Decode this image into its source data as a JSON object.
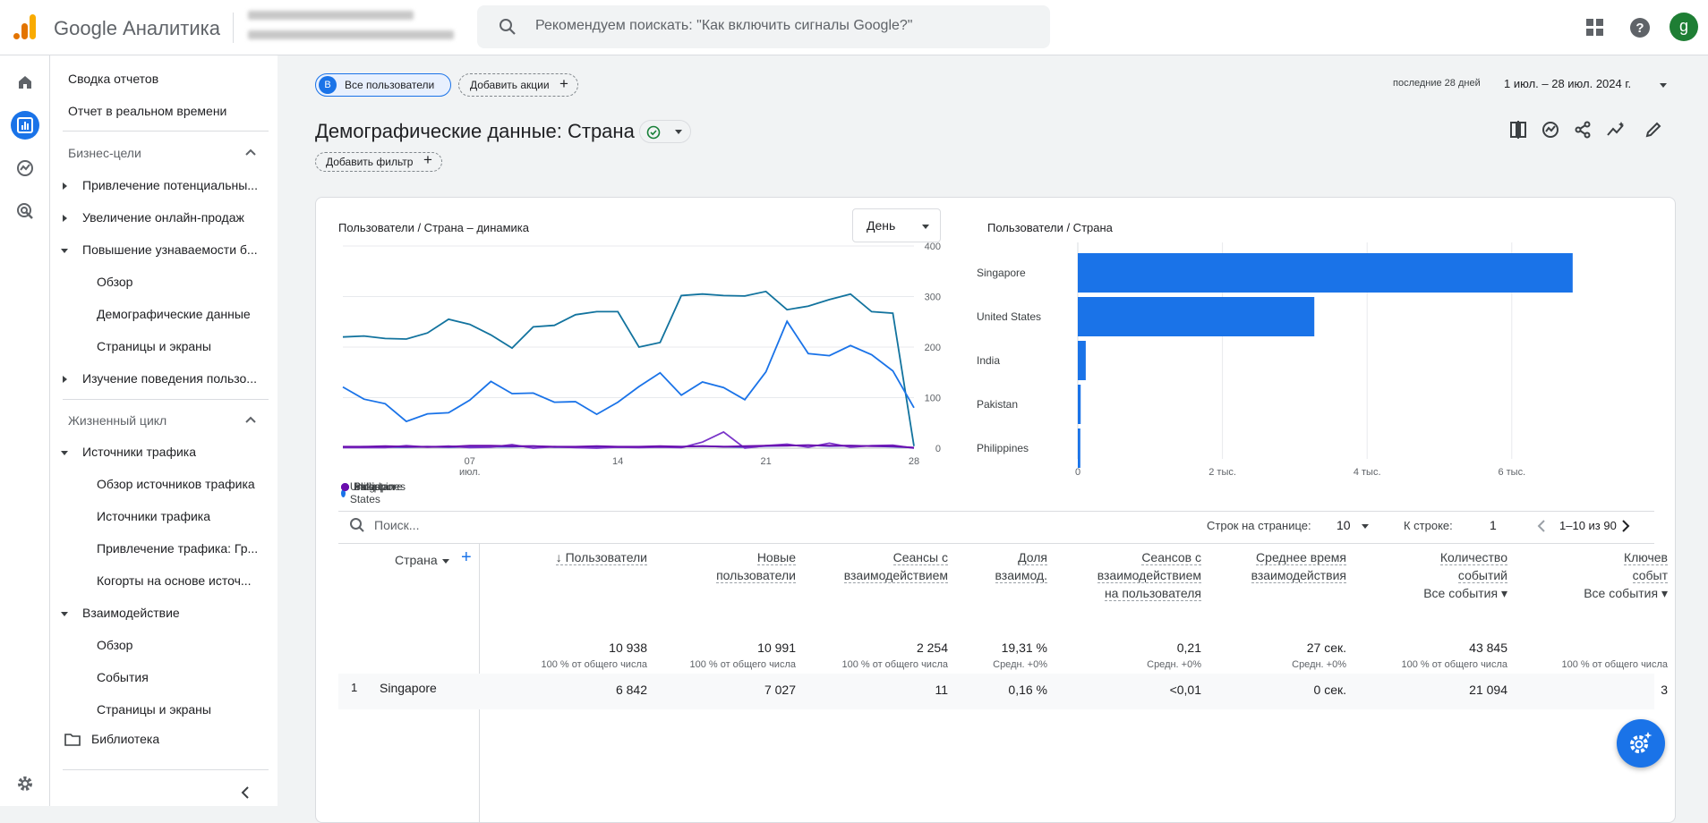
{
  "app": {
    "brand": "Google Аналитика",
    "search_placeholder": "Рекомендуем поискать: \"Как включить сигналы Google?\"",
    "avatar_letter": "g"
  },
  "nav": {
    "items": [
      {
        "label": "Сводка отчетов"
      },
      {
        "label": "Отчет в реальном времени"
      },
      {
        "label": "Бизнес-цели"
      },
      {
        "label": "Привлечение потенциальны..."
      },
      {
        "label": "Увеличение онлайн-продаж"
      },
      {
        "label": "Повышение узнаваемости б..."
      },
      {
        "label": "Обзор"
      },
      {
        "label": "Демографические данные"
      },
      {
        "label": "Страницы и экраны"
      },
      {
        "label": "Изучение поведения пользо..."
      },
      {
        "label": "Жизненный цикл"
      },
      {
        "label": "Источники трафика"
      },
      {
        "label": "Обзор источников трафика"
      },
      {
        "label": "Источники трафика"
      },
      {
        "label": "Привлечение трафика: Гр..."
      },
      {
        "label": "Когорты на основе источ..."
      },
      {
        "label": "Взаимодействие"
      },
      {
        "label": "Обзор"
      },
      {
        "label": "События"
      },
      {
        "label": "Страницы и экраны"
      },
      {
        "label": "Библиотека"
      }
    ]
  },
  "header": {
    "segment_badge": "B",
    "segment_label": "Все пользователи",
    "add_comparison": "Добавить акции",
    "date_prefix": "последние 28 дней",
    "date_range": "1 июл. – 28 июл. 2024 г.",
    "title": "Демографические данные: Страна",
    "add_filter": "Добавить фильтр"
  },
  "line_chart": {
    "title": "Пользователи / Страна – динамика",
    "granularity": "День",
    "x_ticks": [
      "07",
      "14",
      "21",
      "28"
    ],
    "x_sub": "июл.",
    "y_ticks": [
      "400",
      "300",
      "200",
      "100",
      "0"
    ]
  },
  "bar_chart": {
    "title": "Пользователи / Страна",
    "x_ticks": [
      "0",
      "2 тыс.",
      "4 тыс.",
      "6 тыс."
    ]
  },
  "chart_data": [
    {
      "type": "line",
      "title": "Пользователи / Страна – динамика",
      "x": [
        1,
        2,
        3,
        4,
        5,
        6,
        7,
        8,
        9,
        10,
        11,
        12,
        13,
        14,
        15,
        16,
        17,
        18,
        19,
        20,
        21,
        22,
        23,
        24,
        25,
        26,
        27,
        28
      ],
      "ylim": [
        0,
        400
      ],
      "series": [
        {
          "name": "Singapore",
          "color": "#12739e",
          "values": [
            220,
            222,
            217,
            216,
            228,
            255,
            245,
            224,
            198,
            240,
            243,
            264,
            270,
            270,
            200,
            209,
            302,
            305,
            302,
            301,
            310,
            274,
            281,
            294,
            305,
            270,
            267,
            4
          ]
        },
        {
          "name": "United States",
          "color": "#1a73e8",
          "values": [
            121,
            97,
            88,
            53,
            68,
            70,
            95,
            132,
            108,
            109,
            91,
            92,
            67,
            91,
            122,
            149,
            105,
            131,
            120,
            96,
            151,
            251,
            187,
            183,
            203,
            185,
            153,
            80
          ]
        },
        {
          "name": "India",
          "color": "#4b4dd8",
          "values": [
            2,
            3,
            2,
            2,
            3,
            2,
            3,
            3,
            3,
            4,
            2,
            2,
            3,
            2,
            2,
            3,
            3,
            4,
            3,
            2,
            4,
            5,
            6,
            4,
            5,
            4,
            3,
            1
          ]
        },
        {
          "name": "Pakistan",
          "color": "#7a35c9",
          "values": [
            1,
            1,
            1,
            5,
            2,
            4,
            1,
            2,
            7,
            0,
            3,
            1,
            0,
            2,
            1,
            2,
            1,
            12,
            32,
            0,
            5,
            8,
            2,
            10,
            2,
            5,
            6,
            0
          ]
        },
        {
          "name": "Philippines",
          "color": "#6a0dad",
          "values": [
            3,
            3,
            4,
            3,
            3,
            3,
            5,
            5,
            4,
            4,
            3,
            3,
            4,
            3,
            3,
            4,
            3,
            4,
            3,
            4,
            5,
            5,
            6,
            5,
            5,
            4,
            4,
            1
          ]
        }
      ]
    },
    {
      "type": "bar",
      "title": "Пользователи / Страна",
      "categories": [
        "Singapore",
        "United States",
        "India",
        "Pakistan",
        "Philippines"
      ],
      "values": [
        6842,
        3270,
        110,
        40,
        35
      ],
      "xlim": [
        0,
        7500
      ],
      "color": "#1a73e8"
    }
  ],
  "table": {
    "search_placeholder": "Поиск...",
    "rows_per_page_label": "Строк на странице:",
    "rows_per_page": "10",
    "go_to_label": "К строке:",
    "go_to_value": "1",
    "range": "1–10 из 90",
    "dimension": "Страна",
    "columns": [
      {
        "lines": [
          "↓ Пользователи"
        ],
        "total": "10 938",
        "sub": "100 % от общего числа",
        "row1": "6 842"
      },
      {
        "lines": [
          "Новые",
          "пользователи"
        ],
        "total": "10 991",
        "sub": "100 % от общего числа",
        "row1": "7 027"
      },
      {
        "lines": [
          "Сеансы с",
          "взаимодействием"
        ],
        "total": "2 254",
        "sub": "100 % от общего числа",
        "row1": "11"
      },
      {
        "lines": [
          "Доля",
          "взаимод."
        ],
        "total": "19,31 %",
        "sub": "Средн. +0%",
        "row1": "0,16 %"
      },
      {
        "lines": [
          "Сеансов с",
          "взаимодействием",
          "на пользователя"
        ],
        "total": "0,21",
        "sub": "Средн. +0%",
        "row1": "<0,01"
      },
      {
        "lines": [
          "Среднее время",
          "взаимодействия"
        ],
        "total": "27 сек.",
        "sub": "Средн. +0%",
        "row1": "0 сек."
      },
      {
        "lines": [
          "Количество",
          "событий"
        ],
        "extra": "Все события",
        "total": "43 845",
        "sub": "100 % от общего числа",
        "row1": "21 094"
      },
      {
        "lines": [
          "Ключев",
          "событ"
        ],
        "extra": "Все события",
        "total": "",
        "sub": "100 % от общего числа",
        "row1": "3"
      }
    ],
    "row1_index": "1",
    "row1_country": "Singapore"
  }
}
